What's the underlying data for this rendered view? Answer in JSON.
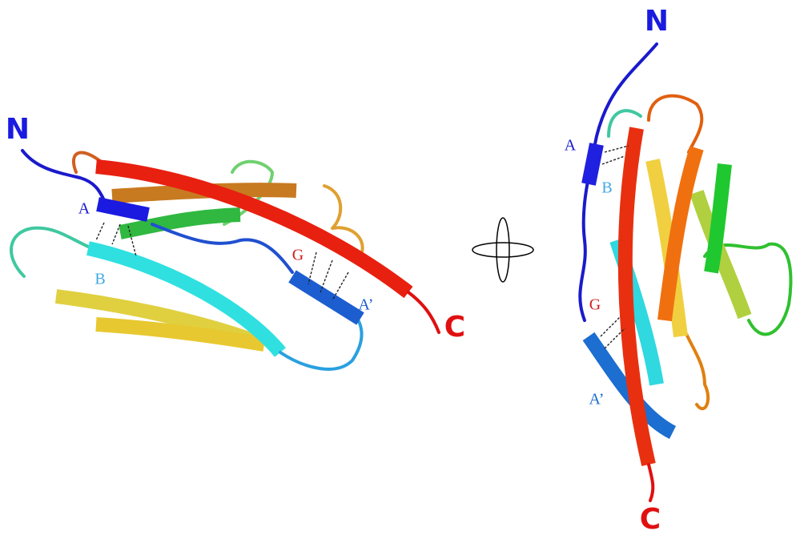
{
  "left_view": {
    "labels": {
      "n_terminus": "N",
      "strand_a": "A",
      "strand_b": "B",
      "strand_g": "G",
      "strand_a_prime": "A’",
      "c_terminus": "C"
    }
  },
  "right_view": {
    "labels": {
      "n_terminus": "N",
      "strand_a": "A",
      "strand_b": "B",
      "strand_g": "G",
      "strand_a_prime": "A’",
      "c_terminus": "C"
    }
  }
}
